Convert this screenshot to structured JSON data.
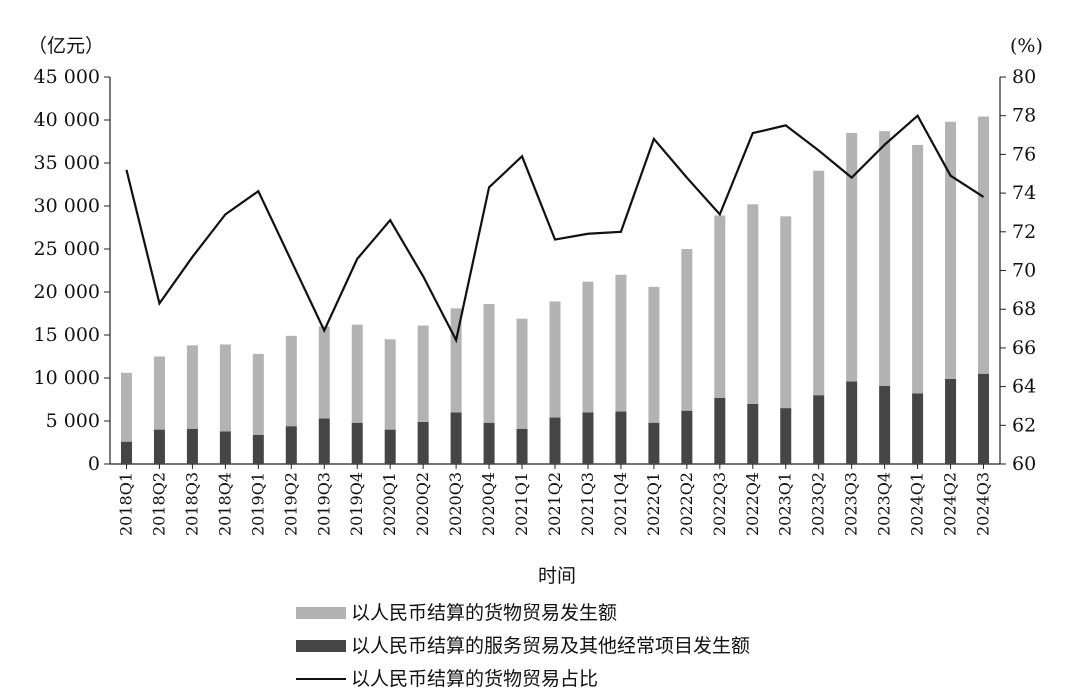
{
  "chart_data": {
    "type": "bar",
    "stacked": true,
    "title": "",
    "xlabel": "时间",
    "y_left_unit": "（亿元）",
    "y_right_unit": "(%)",
    "ylim": [
      0,
      45000
    ],
    "y2lim": [
      60,
      80
    ],
    "y_ticks": [
      "0",
      "5 000",
      "10 000",
      "15 000",
      "20 000",
      "25 000",
      "30 000",
      "35 000",
      "40 000",
      "45 000"
    ],
    "y2_ticks": [
      "60",
      "62",
      "64",
      "66",
      "68",
      "70",
      "72",
      "74",
      "76",
      "78",
      "80"
    ],
    "categories": [
      "2018Q1",
      "2018Q2",
      "2018Q3",
      "2018Q4",
      "2019Q1",
      "2019Q2",
      "2019Q3",
      "2019Q4",
      "2020Q1",
      "2020Q2",
      "2020Q3",
      "2020Q4",
      "2021Q1",
      "2021Q2",
      "2021Q3",
      "2021Q4",
      "2022Q1",
      "2022Q2",
      "2022Q3",
      "2022Q4",
      "2023Q1",
      "2023Q2",
      "2023Q3",
      "2023Q4",
      "2024Q1",
      "2024Q2",
      "2024Q3"
    ],
    "series": [
      {
        "name": "以人民币结算的服务贸易及其他经常项目发生额",
        "type": "bar",
        "axis": "left",
        "color": "#454545",
        "values": [
          2600,
          4000,
          4100,
          3800,
          3400,
          4400,
          5300,
          4800,
          4000,
          4900,
          6000,
          4800,
          4100,
          5400,
          6000,
          6100,
          4800,
          6200,
          7700,
          7000,
          6500,
          8000,
          9600,
          9100,
          8200,
          9900,
          10500
        ]
      },
      {
        "name": "以人民币结算的货物贸易发生额",
        "type": "bar",
        "axis": "left",
        "color": "#b3b3b3",
        "values": [
          8000,
          8500,
          9700,
          10100,
          9400,
          10500,
          10700,
          11400,
          10500,
          11200,
          12100,
          13800,
          12800,
          13500,
          15200,
          15900,
          15800,
          18800,
          21200,
          23200,
          22300,
          26100,
          28900,
          29600,
          28900,
          29900,
          29900
        ]
      },
      {
        "name": "以人民币结算的货物贸易占比",
        "type": "line",
        "axis": "right",
        "color": "#111111",
        "values": [
          75.2,
          68.3,
          70.7,
          72.9,
          74.1,
          70.5,
          66.9,
          70.6,
          72.6,
          69.7,
          66.4,
          74.3,
          75.9,
          71.6,
          71.9,
          72.0,
          76.8,
          74.8,
          72.9,
          77.1,
          77.5,
          76.2,
          74.8,
          76.5,
          78.0,
          74.9,
          73.8
        ]
      }
    ],
    "legend_position": "bottom"
  }
}
